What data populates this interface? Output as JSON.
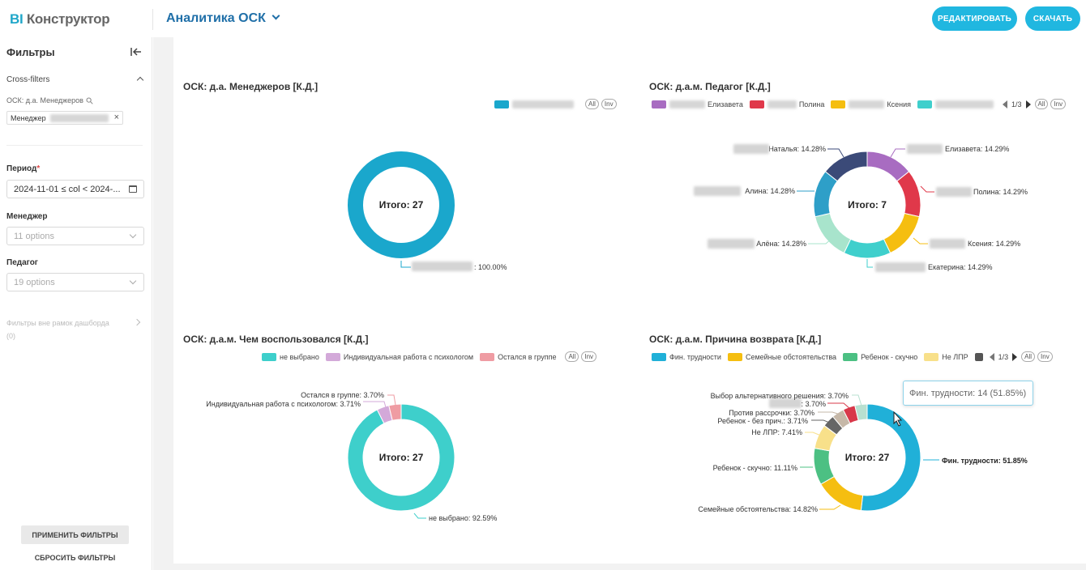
{
  "header": {
    "logo_bi": "BI",
    "logo_text": "Конструктор",
    "dashboard_title": "Аналитика ОСК",
    "edit_label": "РЕДАКТИРОВАТЬ",
    "download_label": "СКАЧАТЬ"
  },
  "sidebar": {
    "title": "Фильтры",
    "cross_filters_label": "Cross-filters",
    "cross_filter_source": "ОСК: д.а. Менеджеров",
    "chip_label": "Менеджер",
    "period_label": "Период",
    "period_required": "*",
    "period_value": "2024-11-01 ≤ col < 2024-...",
    "manager_label": "Менеджер",
    "manager_placeholder": "11 options",
    "teacher_label": "Педагог",
    "teacher_placeholder": "19 options",
    "out_of_scope_label": "Фильтры вне рамок дашборда",
    "out_of_scope_count": "(0)",
    "apply_label": "ПРИМЕНИТЬ ФИЛЬТРЫ",
    "reset_label": "СБРОСИТЬ ФИЛЬТРЫ"
  },
  "common": {
    "all_label": "All",
    "inv_label": "Inv",
    "pager_text": "1/3"
  },
  "tooltip": {
    "text": "Фин. трудности: 14 (51.85%)"
  },
  "chart_data": [
    {
      "type": "pie",
      "variant": "donut",
      "title": "ОСК: д.а. Менеджеров [К.Д.]",
      "center_label": "Итого: 27",
      "categories": [
        ""
      ],
      "values": [
        27
      ],
      "percent_labels": [
        ": 100.00%"
      ],
      "colors": [
        "#1aa7cc"
      ],
      "legend": [
        ""
      ],
      "legend_placement": "top-right"
    },
    {
      "type": "pie",
      "variant": "donut",
      "title": "ОСК: д.а.м. Педагог [К.Д.]",
      "center_label": "Итого: 7",
      "categories": [
        "Елизавета",
        "Полина",
        "Ксения",
        "Екатерина",
        "Алёна",
        "Алина",
        "Наталья"
      ],
      "values": [
        1,
        1,
        1,
        1,
        1,
        1,
        1
      ],
      "percent_labels": [
        "Елизавета: 14.29%",
        "Полина: 14.29%",
        "Ксения: 14.29%",
        "Екатерина: 14.29%",
        "Алёна: 14.28%",
        "Алина: 14.28%",
        "Наталья: 14.28%"
      ],
      "colors": [
        "#a86cc1",
        "#e0384a",
        "#f5be10",
        "#3fcfcc",
        "#a8e4cc",
        "#2e9fc8",
        "#3b4a78"
      ],
      "legend": [
        "Елизавета",
        "Полина",
        "Ксения",
        ""
      ],
      "legend_placement": "top-right"
    },
    {
      "type": "pie",
      "variant": "donut",
      "title": "ОСК: д.а.м. Чем воспользовался [К.Д.]",
      "center_label": "Итого: 27",
      "categories": [
        "не выбрано",
        "Индивидуальная работа с психологом",
        "Остался в группе"
      ],
      "values": [
        25,
        1,
        1
      ],
      "percent_labels": [
        "не выбрано: 92.59%",
        "Индивидуальная работа с психологом: 3.71%",
        "Остался в группе: 3.70%"
      ],
      "colors": [
        "#3ecfcb",
        "#d3a9d9",
        "#ef9ca3"
      ],
      "legend": [
        "не выбрано",
        "Индивидуальная работа с психологом",
        "Остался в группе"
      ],
      "legend_placement": "top-right"
    },
    {
      "type": "pie",
      "variant": "donut",
      "title": "ОСК: д.а.м. Причина возврата [К.Д.]",
      "center_label": "Итого: 27",
      "categories": [
        "Фин. трудности",
        "Семейные обстоятельства",
        "Ребенок - скучно",
        "Не ЛПР",
        "Ребенок - без прич.",
        "Против рассрочки",
        "",
        "Выбор альтернативного решения"
      ],
      "values": [
        14,
        4,
        3,
        2,
        1,
        1,
        1,
        1
      ],
      "percent_labels": [
        "Фин. трудности: 51.85%",
        "Семейные обстоятельства: 14.82%",
        "Ребенок - скучно: 11.11%",
        "Не ЛПР: 7.41%",
        "Ребенок - без прич.: 3.71%",
        "Против рассрочки: 3.70%",
        ": 3.70%",
        "Выбор альтернативного решения: 3.70%"
      ],
      "colors": [
        "#20b0d8",
        "#f5be10",
        "#4cc083",
        "#f8e08a",
        "#666666",
        "#c6b8a8",
        "#d8384a",
        "#b8e0d0"
      ],
      "legend": [
        "Фин. трудности",
        "Семейные обстоятельства",
        "Ребенок - скучно",
        "Не ЛПР"
      ],
      "legend_colors": [
        "#20b0d8",
        "#f5be10",
        "#4cc083",
        "#f8e08a",
        "#555555"
      ],
      "legend_placement": "top-right"
    }
  ]
}
